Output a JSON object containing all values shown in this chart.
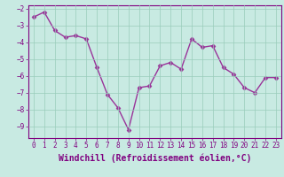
{
  "x": [
    0,
    1,
    2,
    3,
    4,
    5,
    6,
    7,
    8,
    9,
    10,
    11,
    12,
    13,
    14,
    15,
    16,
    17,
    18,
    19,
    20,
    21,
    22,
    23
  ],
  "y": [
    -2.5,
    -2.2,
    -3.3,
    -3.7,
    -3.6,
    -3.8,
    -5.5,
    -7.1,
    -7.9,
    -9.2,
    -6.7,
    -6.6,
    -5.4,
    -5.2,
    -5.6,
    -3.8,
    -4.3,
    -4.2,
    -5.5,
    -5.9,
    -6.7,
    -7.0,
    -6.1,
    -6.1
  ],
  "line_color": "#993399",
  "marker": "D",
  "markersize": 2.5,
  "linewidth": 1.0,
  "xlabel": "Windchill (Refroidissement éolien,°C)",
  "xlabel_fontsize": 7,
  "ylim": [
    -9.7,
    -1.8
  ],
  "xlim": [
    -0.5,
    23.5
  ],
  "yticks": [
    -9,
    -8,
    -7,
    -6,
    -5,
    -4,
    -3,
    -2
  ],
  "xticks": [
    0,
    1,
    2,
    3,
    4,
    5,
    6,
    7,
    8,
    9,
    10,
    11,
    12,
    13,
    14,
    15,
    16,
    17,
    18,
    19,
    20,
    21,
    22,
    23
  ],
  "grid_color": "#99ccbb",
  "bg_color": "#c8eae2",
  "tick_fontsize": 5.5,
  "tick_color": "#800080",
  "spine_color": "#800080"
}
